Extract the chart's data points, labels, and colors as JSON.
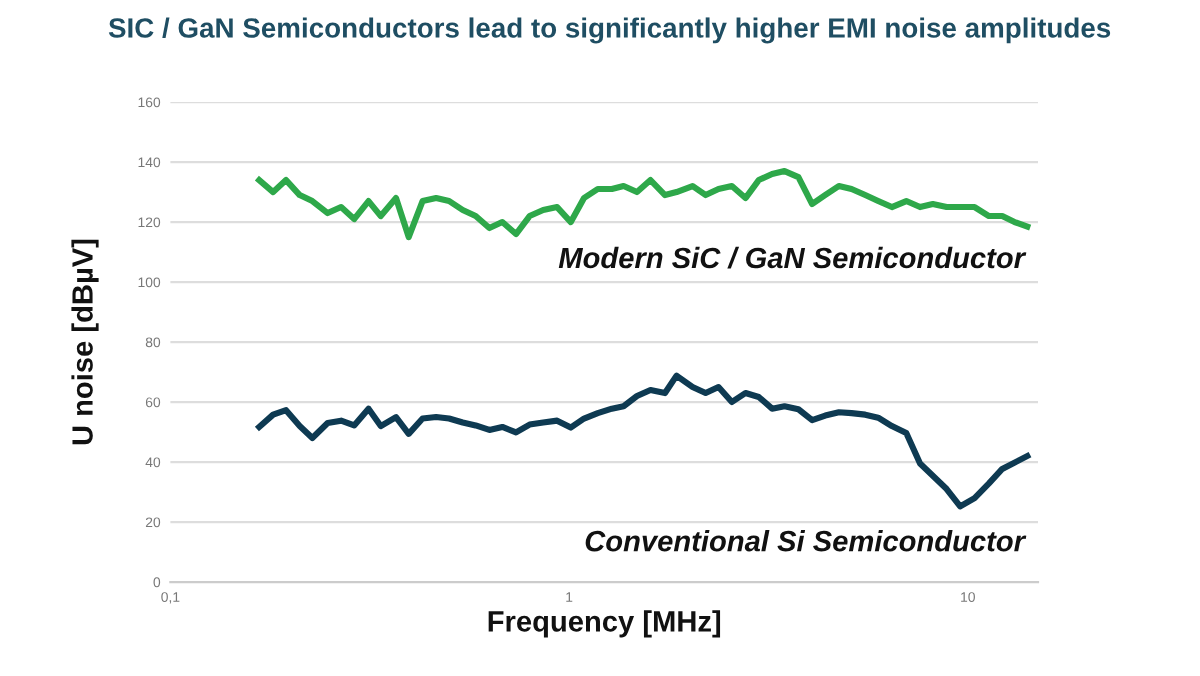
{
  "chart_data": {
    "type": "line",
    "title": "SIC / GaN Semiconductors lead to significantly higher EMI noise amplitudes",
    "xlabel": "Frequency [MHz]",
    "ylabel": "U noise [dBµV]",
    "log": "x",
    "xlim": [
      0.1,
      15
    ],
    "xticks": [
      {
        "value": 0.1,
        "label": "0,1"
      },
      1,
      10
    ],
    "ylim": [
      0,
      160
    ],
    "yticks": [
      0,
      20,
      40,
      60,
      80,
      100,
      120,
      140,
      160
    ],
    "grid": "y",
    "marker": "none",
    "line_style": "solid",
    "legend": false,
    "series": [
      {
        "name": "Modern SiC / GaN Semiconductor",
        "color": "#2ea84a",
        "x": [
          0.167,
          0.181,
          0.195,
          0.211,
          0.227,
          0.248,
          0.268,
          0.289,
          0.314,
          0.337,
          0.368,
          0.396,
          0.429,
          0.464,
          0.5,
          0.541,
          0.583,
          0.631,
          0.68,
          0.736,
          0.796,
          0.861,
          0.933,
          1.01,
          1.09,
          1.18,
          1.28,
          1.37,
          1.48,
          1.6,
          1.74,
          1.86,
          2.04,
          2.2,
          2.37,
          2.56,
          2.77,
          2.99,
          3.23,
          3.47,
          3.76,
          4.07,
          4.39,
          4.75,
          5.11,
          5.53,
          5.96,
          6.45,
          7.01,
          7.59,
          8.17,
          8.85,
          9.57,
          10.4,
          11.3,
          12.2,
          13.1,
          14.1
        ],
        "values": [
          134,
          130,
          134,
          129,
          127,
          123,
          125,
          121,
          127,
          122,
          128,
          115,
          127,
          128,
          127,
          124,
          122,
          118,
          120,
          116,
          122,
          124,
          125,
          120,
          128,
          131,
          131,
          132,
          130,
          134,
          129,
          130,
          132,
          129,
          131,
          132,
          128,
          134,
          136,
          137,
          135,
          126,
          129,
          132,
          131,
          129,
          127,
          125,
          127,
          125,
          126,
          125,
          125,
          125,
          122,
          122,
          120,
          118.5
        ]
      },
      {
        "name": "Conventional Si Semiconductor",
        "color": "#0e3a52",
        "x": [
          0.167,
          0.181,
          0.195,
          0.211,
          0.227,
          0.248,
          0.268,
          0.289,
          0.314,
          0.337,
          0.368,
          0.396,
          0.429,
          0.464,
          0.5,
          0.541,
          0.583,
          0.631,
          0.68,
          0.736,
          0.796,
          0.861,
          0.933,
          1.01,
          1.09,
          1.18,
          1.28,
          1.37,
          1.48,
          1.6,
          1.74,
          1.86,
          2.04,
          2.2,
          2.37,
          2.56,
          2.77,
          2.99,
          3.23,
          3.47,
          3.76,
          4.07,
          4.39,
          4.75,
          5.11,
          5.53,
          5.96,
          6.45,
          7.01,
          7.59,
          8.85,
          9.57,
          10.4,
          11.3,
          12.2,
          14.1
        ],
        "values": [
          51.7,
          55.8,
          57.3,
          52,
          48,
          53,
          53.8,
          52.2,
          57.8,
          52,
          55,
          49.4,
          54.5,
          55,
          54.5,
          53.2,
          52.2,
          50.7,
          51.7,
          49.9,
          52.5,
          53.2,
          53.8,
          51.5,
          54.5,
          56.3,
          57.8,
          58.6,
          62,
          64,
          63,
          68.8,
          65,
          63,
          65,
          60,
          63,
          61.7,
          57.8,
          58.6,
          57.6,
          54,
          55.5,
          56.6,
          56.3,
          55.8,
          54.8,
          52,
          49.7,
          39.5,
          31,
          25.2,
          28,
          32.9,
          37.7,
          42
        ]
      }
    ]
  }
}
